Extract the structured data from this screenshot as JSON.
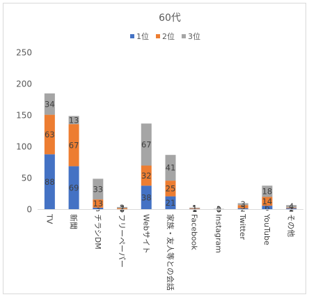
{
  "chart_data": {
    "type": "bar",
    "stacked": true,
    "title": "60代",
    "categories": [
      "TV",
      "新聞",
      "チラシDM",
      "フリーペーパー",
      "Webサイト",
      "家族・友人等との会話",
      "Facebook",
      "Instagram",
      "Twitter",
      "YouTube",
      "その他"
    ],
    "series": [
      {
        "name": "1位",
        "color": "#4472c4",
        "values": [
          88,
          69,
          3,
          0,
          38,
          21,
          1,
          0,
          2,
          6,
          2
        ]
      },
      {
        "name": "2位",
        "color": "#ed7d31",
        "values": [
          63,
          67,
          13,
          2,
          32,
          25,
          1,
          0,
          5,
          14,
          1
        ]
      },
      {
        "name": "3位",
        "color": "#a5a5a5",
        "values": [
          34,
          13,
          33,
          2,
          67,
          41,
          1,
          1,
          3,
          18,
          4
        ]
      }
    ],
    "ylim": [
      0,
      250
    ],
    "yticks": [
      0,
      50,
      100,
      150,
      200,
      250
    ],
    "legend_position": "top",
    "grid": false
  }
}
